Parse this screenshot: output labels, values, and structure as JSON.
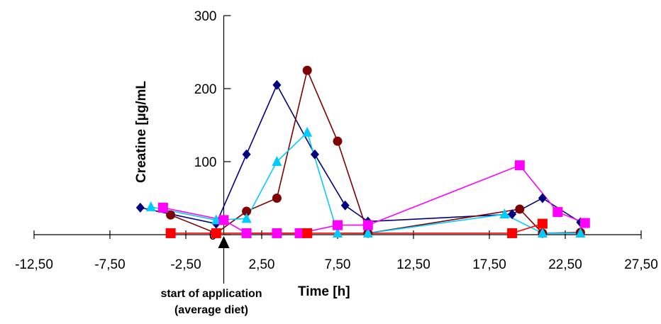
{
  "chart_data": {
    "type": "line",
    "xlabel": "Time [h]",
    "ylabel": "Creatine [µg/mL",
    "xlim": [
      -12.5,
      27.5
    ],
    "ylim": [
      0,
      300
    ],
    "x_ticks": [
      -12.5,
      -7.5,
      -2.5,
      2.5,
      7.5,
      12.5,
      17.5,
      22.5,
      27.5
    ],
    "x_tick_labels": [
      "-12,50",
      "-7,50",
      "-2,50",
      "2,50",
      "7,50",
      "12,50",
      "17,50",
      "22,50",
      "27,50"
    ],
    "y_ticks": [
      0,
      100,
      200,
      300
    ],
    "y_tick_labels": [
      "0",
      "100",
      "200",
      "300"
    ],
    "grid": false,
    "legend": "none",
    "annotation": {
      "lines": [
        "start of application",
        "(average diet)"
      ],
      "x": 0
    },
    "series": [
      {
        "color": "#00007F",
        "marker": "diamond",
        "x": [
          -5.5,
          -0.5,
          1.5,
          3.5,
          6.0,
          8.0,
          9.5,
          19.0,
          21.0,
          23.5
        ],
        "y": [
          37,
          15,
          110,
          205,
          110,
          40,
          18,
          28,
          50,
          17
        ]
      },
      {
        "color": "#7F0000",
        "marker": "circle",
        "x": [
          -3.5,
          -0.5,
          1.5,
          3.5,
          5.5,
          7.5,
          9.5,
          19.5,
          21.0,
          23.5
        ],
        "y": [
          27,
          2,
          32,
          50,
          225,
          128,
          2,
          35,
          2,
          3
        ]
      },
      {
        "color": "#00CCFF",
        "marker": "triangle",
        "x": [
          -4.8,
          -0.5,
          1.5,
          3.5,
          5.5,
          7.5,
          9.5,
          18.5,
          21.0,
          23.5
        ],
        "y": [
          38,
          20,
          22,
          100,
          140,
          2,
          2,
          28,
          2,
          2
        ]
      },
      {
        "color": "#FF00FF",
        "marker": "square",
        "x": [
          -4.0,
          0.0,
          1.5,
          3.5,
          5.0,
          7.5,
          9.5,
          19.5,
          22.0,
          23.8
        ],
        "y": [
          37,
          20,
          2,
          2,
          2,
          13,
          13,
          95,
          31,
          16
        ]
      },
      {
        "color": "#FF0000",
        "marker": "square",
        "x": [
          -3.5,
          -0.5,
          5.5,
          19.0,
          21.0
        ],
        "y": [
          2,
          2,
          2,
          2,
          15
        ]
      }
    ]
  }
}
